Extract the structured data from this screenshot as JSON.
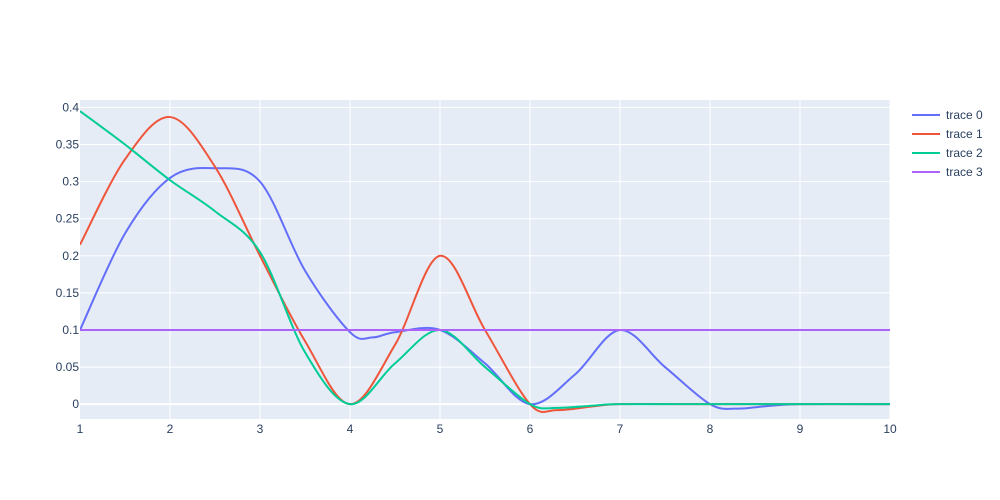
{
  "chart_data": {
    "type": "line",
    "title": "",
    "xlabel": "",
    "ylabel": "",
    "xlim": [
      1,
      10
    ],
    "ylim": [
      -0.02,
      0.41
    ],
    "x_ticks": [
      1,
      2,
      3,
      4,
      5,
      6,
      7,
      8,
      9,
      10
    ],
    "x_tick_labels": [
      "1",
      "2",
      "3",
      "4",
      "5",
      "6",
      "7",
      "8",
      "9",
      "10"
    ],
    "y_ticks": [
      0,
      0.05,
      0.1,
      0.15,
      0.2,
      0.25,
      0.3,
      0.35,
      0.4
    ],
    "y_tick_labels": [
      "0",
      "0.05",
      "0.1",
      "0.15",
      "0.2",
      "0.25",
      "0.3",
      "0.35",
      "0.4"
    ],
    "grid": true,
    "legend_position": "top-right",
    "colors": {
      "plot_background": "#e5ecf6",
      "grid": "#ffffff",
      "text": "#2a3f5f"
    },
    "series": [
      {
        "name": "trace 0",
        "color": "#636efa",
        "x": [
          1,
          1.5,
          2,
          2.5,
          3,
          3.5,
          4,
          4.25,
          4.5,
          5,
          5.5,
          6,
          6.5,
          7,
          7.5,
          8,
          8.3,
          8.6,
          9,
          10
        ],
        "y": [
          0.1,
          0.23,
          0.305,
          0.318,
          0.3,
          0.18,
          0.097,
          0.09,
          0.097,
          0.1,
          0.055,
          0.0,
          0.04,
          0.1,
          0.05,
          0.0,
          -0.006,
          -0.003,
          0.0,
          0.0
        ]
      },
      {
        "name": "trace 1",
        "color": "#ef553b",
        "x": [
          1,
          1.5,
          2,
          2.5,
          3,
          3.5,
          4,
          4.5,
          5,
          5.5,
          6,
          6.3,
          6.7,
          7,
          8,
          9,
          10
        ],
        "y": [
          0.215,
          0.33,
          0.387,
          0.32,
          0.2,
          0.085,
          0.0,
          0.08,
          0.2,
          0.1,
          0.0,
          -0.008,
          -0.003,
          0.0,
          0.0,
          0.0,
          0.0
        ]
      },
      {
        "name": "trace 2",
        "color": "#00cc96",
        "x": [
          1,
          1.5,
          2,
          2.5,
          3,
          3.5,
          4,
          4.5,
          5,
          5.5,
          6,
          6.3,
          6.7,
          7,
          8,
          9,
          10
        ],
        "y": [
          0.395,
          0.35,
          0.302,
          0.26,
          0.205,
          0.07,
          0.0,
          0.055,
          0.1,
          0.05,
          0.0,
          -0.005,
          -0.002,
          0.0,
          0.0,
          0.0,
          0.0
        ]
      },
      {
        "name": "trace 3",
        "color": "#ab63fa",
        "x": [
          1,
          2,
          3,
          4,
          5,
          6,
          7,
          8,
          9,
          10
        ],
        "y": [
          0.1,
          0.1,
          0.1,
          0.1,
          0.1,
          0.1,
          0.1,
          0.1,
          0.1,
          0.1
        ]
      }
    ]
  }
}
